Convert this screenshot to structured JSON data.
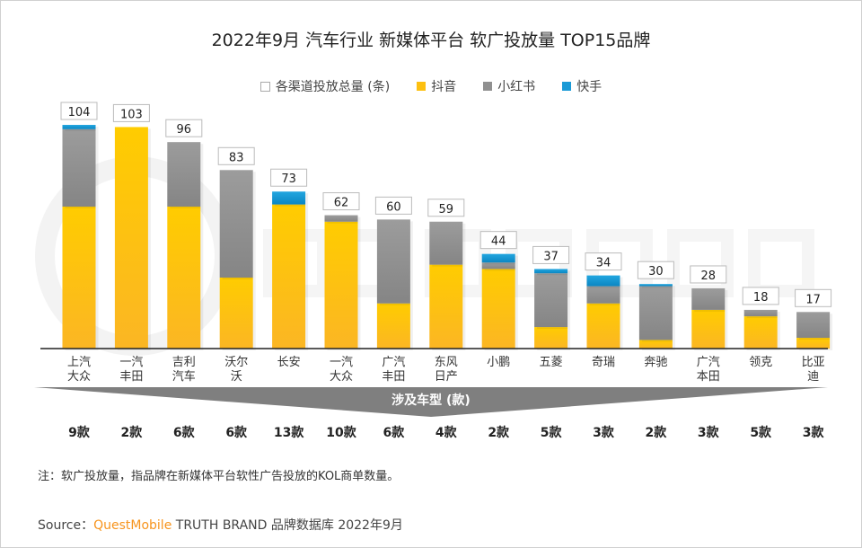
{
  "chart_data": {
    "type": "bar",
    "stacked": true,
    "title": "2022年9月 汽车行业 新媒体平台 软广投放量 TOP15品牌",
    "categories": [
      "上汽\n大众",
      "一汽\n丰田",
      "吉利\n汽车",
      "沃尔\n沃",
      "长安",
      "一汽\n大众",
      "广汽\n丰田",
      "东风\n日产",
      "小鹏",
      "五菱",
      "奇瑞",
      "奔驰",
      "广汽\n本田",
      "领克",
      "比亚\n迪"
    ],
    "totals": [
      104,
      103,
      96,
      83,
      73,
      62,
      60,
      59,
      44,
      37,
      34,
      30,
      28,
      18,
      17
    ],
    "totals_label": "各渠道投放总量 (条)",
    "series": [
      {
        "name": "抖音",
        "color": "#fdc010",
        "values": [
          66,
          103,
          66,
          33,
          67,
          59,
          21,
          39,
          37,
          10,
          21,
          4,
          18,
          15,
          5
        ]
      },
      {
        "name": "小红书",
        "color": "#909090",
        "values": [
          36,
          0,
          30,
          50,
          0,
          3,
          39,
          20,
          3,
          25,
          8,
          25,
          10,
          3,
          12
        ]
      },
      {
        "name": "快手",
        "color": "#1a9ad6",
        "values": [
          2,
          0,
          0,
          0,
          6,
          0,
          0,
          0,
          4,
          2,
          5,
          1,
          0,
          0,
          0
        ]
      }
    ],
    "ylim": [
      0,
      110
    ],
    "grid": false,
    "legend_position": "top",
    "models_label": "涉及车型 (款)",
    "models": [
      "9款",
      "2款",
      "6款",
      "6款",
      "13款",
      "10款",
      "6款",
      "4款",
      "2款",
      "5款",
      "3款",
      "2款",
      "3款",
      "5款",
      "3款"
    ]
  },
  "watermark": "QUESTMOBILE",
  "note": "注：软广投放量，指品牌在新媒体平台软性广告投放的KOL商单数量。",
  "source": {
    "prefix": "Source：",
    "brand": "QuestMobile",
    "rest": " TRUTH BRAND 品牌数据库 2022年9月"
  }
}
